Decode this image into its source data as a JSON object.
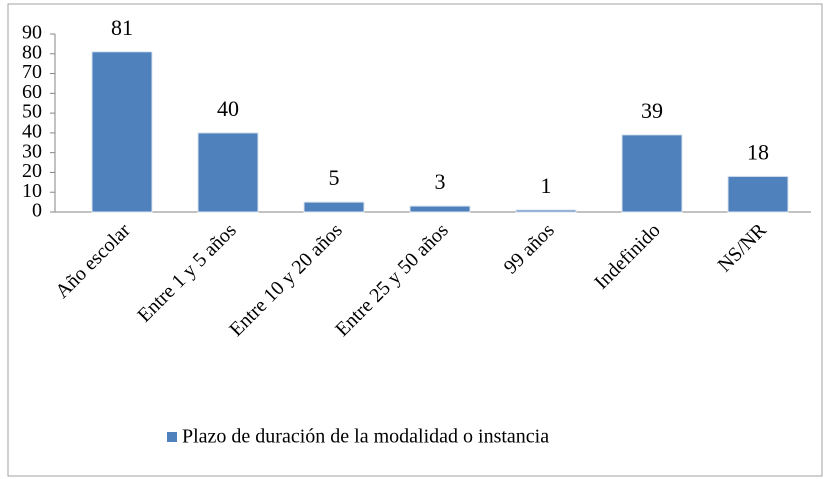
{
  "chart_data": {
    "type": "bar",
    "categories": [
      "Año escolar",
      "Entre 1 y 5 años",
      "Entre 10 y 20 años",
      "Entre 25 y 50 años",
      "99 años",
      "Indefinido",
      "NS/NR"
    ],
    "series": [
      {
        "name": "Plazo de duración de la modalidad o instancia",
        "color": "#4f81bd",
        "values": [
          81,
          40,
          5,
          3,
          1,
          39,
          18
        ]
      }
    ],
    "ylim": [
      0,
      90
    ],
    "yticks": [
      0,
      10,
      20,
      30,
      40,
      50,
      60,
      70,
      80,
      90
    ],
    "grid": false,
    "legend": "bottom"
  }
}
